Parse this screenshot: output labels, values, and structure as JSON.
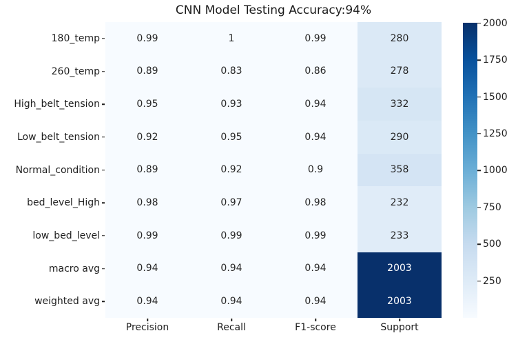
{
  "chart_data": {
    "type": "heatmap",
    "title": "CNN Model Testing Accuracy:94%",
    "rows": [
      "180_temp",
      "260_temp",
      "High_belt_tension",
      "Low_belt_tension",
      "Normal_condition",
      "bed_level_High",
      "low_bed_level",
      "macro avg",
      "weighted avg"
    ],
    "columns": [
      "Precision",
      "Recall",
      "F1-score",
      "Support"
    ],
    "values": [
      [
        0.99,
        1,
        0.99,
        280
      ],
      [
        0.89,
        0.83,
        0.86,
        278
      ],
      [
        0.95,
        0.93,
        0.94,
        332
      ],
      [
        0.92,
        0.95,
        0.94,
        290
      ],
      [
        0.89,
        0.92,
        0.9,
        358
      ],
      [
        0.98,
        0.97,
        0.98,
        232
      ],
      [
        0.99,
        0.99,
        0.99,
        233
      ],
      [
        0.94,
        0.94,
        0.94,
        2003
      ],
      [
        0.94,
        0.94,
        0.94,
        2003
      ]
    ],
    "cell_labels": [
      [
        "0.99",
        "1",
        "0.99",
        "280"
      ],
      [
        "0.89",
        "0.83",
        "0.86",
        "278"
      ],
      [
        "0.95",
        "0.93",
        "0.94",
        "332"
      ],
      [
        "0.92",
        "0.95",
        "0.94",
        "290"
      ],
      [
        "0.89",
        "0.92",
        "0.9",
        "358"
      ],
      [
        "0.98",
        "0.97",
        "0.98",
        "232"
      ],
      [
        "0.99",
        "0.99",
        "0.99",
        "233"
      ],
      [
        "0.94",
        "0.94",
        "0.94",
        "2003"
      ],
      [
        "0.94",
        "0.94",
        "0.94",
        "2003"
      ]
    ],
    "colormap": {
      "name": "Blues",
      "stops": [
        {
          "pos": 0.0,
          "color": "#f7fbff"
        },
        {
          "pos": 0.125,
          "color": "#deebf7"
        },
        {
          "pos": 0.25,
          "color": "#c6dbef"
        },
        {
          "pos": 0.375,
          "color": "#9ecae1"
        },
        {
          "pos": 0.5,
          "color": "#6baed6"
        },
        {
          "pos": 0.625,
          "color": "#4292c6"
        },
        {
          "pos": 0.75,
          "color": "#2171b5"
        },
        {
          "pos": 0.875,
          "color": "#08519c"
        },
        {
          "pos": 1.0,
          "color": "#08306b"
        }
      ]
    },
    "colorbar": {
      "ticks": [
        "250",
        "500",
        "750",
        "1000",
        "1250",
        "1500",
        "1750",
        "2000"
      ],
      "position": "right"
    },
    "annotation_colors": {
      "dark_text": "#262626",
      "light_text": "#ffffff"
    },
    "grid": false,
    "legend_position": "none"
  }
}
